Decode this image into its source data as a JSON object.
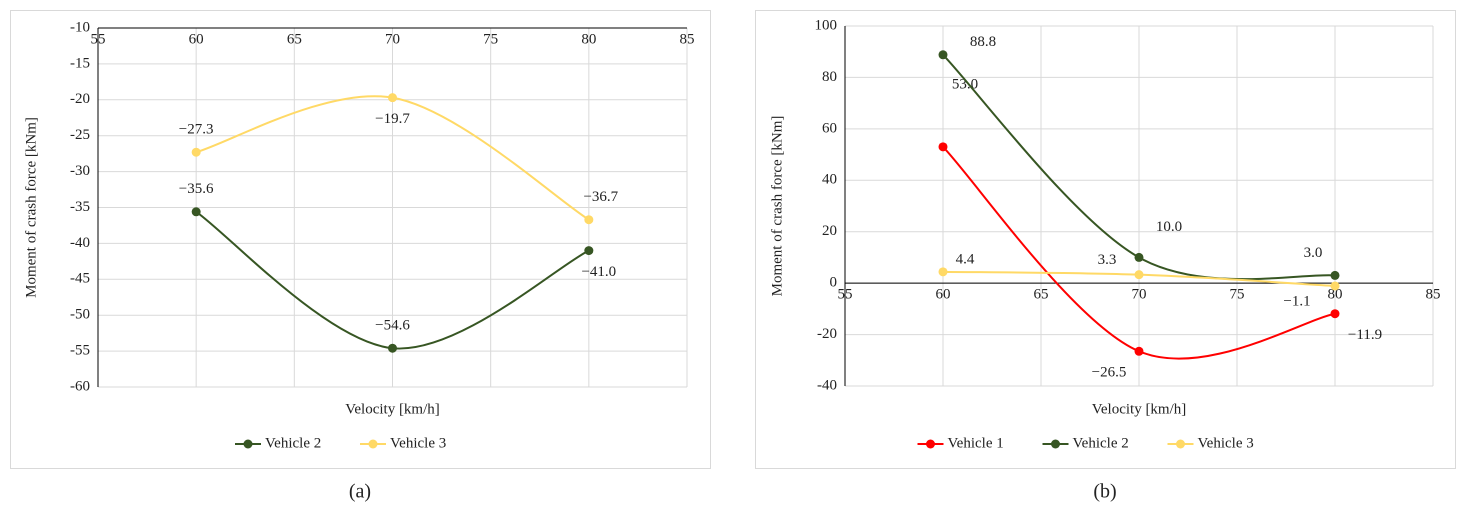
{
  "chart_data": [
    {
      "type": "line",
      "caption": "(a)",
      "x_label": "Velocity [km/h]",
      "y_label": "Moment of crash force [kNm]",
      "x": [
        60,
        70,
        80
      ],
      "xlim": [
        55,
        85
      ],
      "xticks": [
        55,
        60,
        65,
        70,
        75,
        80,
        85
      ],
      "ylim": [
        -60,
        -10
      ],
      "yticks": [
        -60,
        -55,
        -50,
        -45,
        -40,
        -35,
        -30,
        -25,
        -20,
        -15,
        -10
      ],
      "grid": true,
      "smooth": true,
      "legend": "bottom",
      "series": [
        {
          "name": "Vehicle 2",
          "color": "#375623",
          "values": [
            -35.6,
            -54.6,
            -41.0
          ],
          "value_labels": [
            "−35.6",
            "−54.6",
            "−41.0"
          ]
        },
        {
          "name": "Vehicle 3",
          "color": "#ffd966",
          "values": [
            -27.3,
            -19.7,
            -36.7
          ],
          "value_labels": [
            "−27.3",
            "−19.7",
            "−36.7"
          ]
        }
      ]
    },
    {
      "type": "line",
      "caption": "(b)",
      "x_label": "Velocity [km/h]",
      "y_label": "Moment of crash force [kNm]",
      "x": [
        60,
        70,
        80
      ],
      "xlim": [
        55,
        85
      ],
      "xticks": [
        55,
        60,
        65,
        70,
        75,
        80,
        85
      ],
      "ylim": [
        -40,
        100
      ],
      "yticks": [
        -40,
        -20,
        0,
        20,
        40,
        60,
        80,
        100
      ],
      "grid": true,
      "smooth": true,
      "legend": "bottom",
      "series": [
        {
          "name": "Vehicle 1",
          "color": "#ff0000",
          "values": [
            53.0,
            -26.5,
            -11.9
          ],
          "value_labels": [
            "53.0",
            "−26.5",
            "−11.9"
          ]
        },
        {
          "name": "Vehicle 2",
          "color": "#375623",
          "values": [
            88.8,
            10.0,
            3.0
          ],
          "value_labels": [
            "88.8",
            "10.0",
            "3.0"
          ]
        },
        {
          "name": "Vehicle 3",
          "color": "#ffd966",
          "values": [
            4.4,
            3.3,
            -1.1
          ],
          "value_labels": [
            "4.4",
            "3.3",
            "−1.1"
          ]
        }
      ]
    }
  ]
}
